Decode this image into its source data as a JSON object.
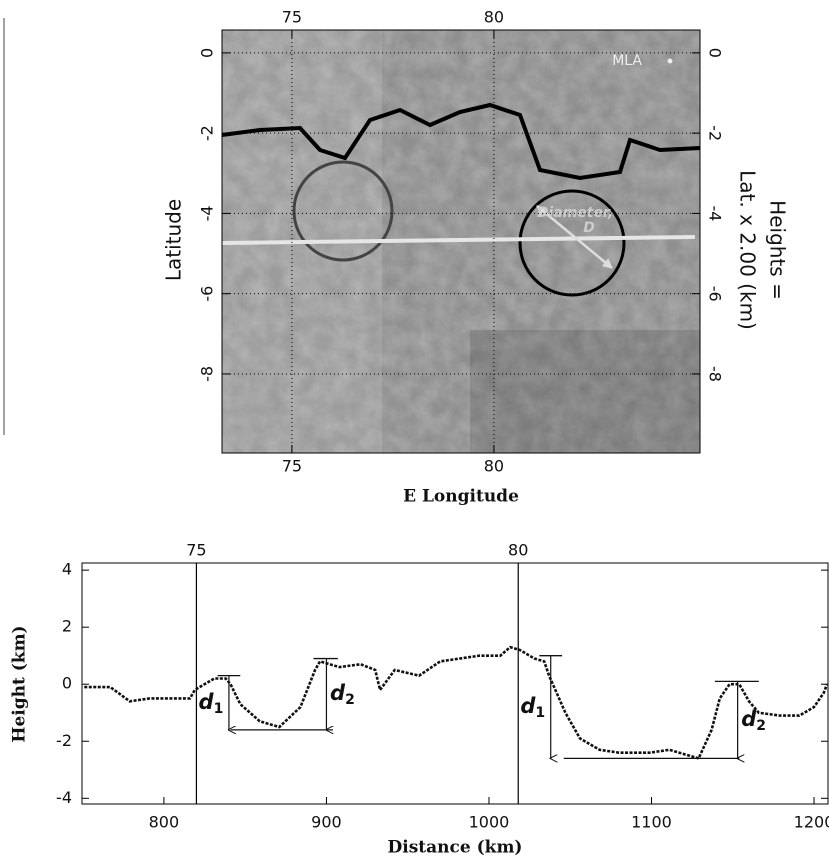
{
  "chart_data": [
    {
      "type": "map",
      "xlabel": "E Longitude",
      "ylabel": "Latitude",
      "y2label": [
        "Heights =",
        "Lat. x 2.00 (km)"
      ],
      "xlim": [
        73.27,
        85.1
      ],
      "ylim": [
        -9.97,
        0.57
      ],
      "xticks": [
        75,
        80
      ],
      "yticks": [
        0,
        -2,
        -4,
        -6,
        -8
      ],
      "y2lim": [
        -9.97,
        0.57
      ],
      "y2ticks": [
        0,
        -2,
        -4,
        -6,
        -8
      ],
      "grid": true,
      "annotations": [
        "MLA",
        "Diameter,",
        "D"
      ]
    },
    {
      "type": "line",
      "xlabel": "Distance (km)",
      "ylabel": "Height (km)",
      "color": "#111111",
      "xlim": [
        749.6,
        1208.6
      ],
      "ylim": [
        -4.2,
        4.25
      ],
      "xticks": [
        800,
        900,
        1000,
        1100,
        1200
      ],
      "yticks": [
        -4,
        -2,
        0,
        2,
        4
      ],
      "x2ticks": [
        {
          "value": 820,
          "label": "75"
        },
        {
          "value": 1018,
          "label": "80"
        }
      ],
      "x": [
        751,
        767,
        779,
        791,
        804,
        816,
        819,
        831,
        838,
        841,
        847,
        859,
        871,
        884,
        893,
        896,
        908,
        921,
        930,
        933,
        942,
        957,
        970,
        982,
        994,
        1007,
        1013,
        1019,
        1028,
        1034,
        1037,
        1047,
        1056,
        1068,
        1080,
        1099,
        1111,
        1123,
        1129,
        1137,
        1142,
        1148,
        1154,
        1160,
        1166,
        1179,
        1191,
        1200,
        1206,
        1208
      ],
      "values": [
        -0.1,
        -0.1,
        -0.6,
        -0.5,
        -0.5,
        -0.5,
        -0.2,
        0.2,
        0.2,
        0,
        -0.7,
        -1.3,
        -1.5,
        -0.8,
        0.5,
        0.8,
        0.6,
        0.7,
        0.5,
        -0.2,
        0.5,
        0.3,
        0.8,
        0.9,
        1.0,
        1.0,
        1.3,
        1.2,
        0.9,
        0.8,
        0.3,
        -1.0,
        -1.9,
        -2.3,
        -2.4,
        -2.4,
        -2.3,
        -2.5,
        -2.6,
        -1.6,
        -0.5,
        0,
        0,
        -0.6,
        -1.0,
        -1.1,
        -1.1,
        -0.8,
        -0.3,
        0
      ],
      "ref_lines": [
        {
          "x": [
            833,
            847
          ],
          "y": 0.3
        },
        {
          "x": [
            841,
            904
          ],
          "y": -1.6
        },
        {
          "x": [
            892,
            907
          ],
          "y": 0.9
        },
        {
          "x": [
            1031,
            1045
          ],
          "y": 1.0
        },
        {
          "x": [
            1046,
            1154
          ],
          "y": -2.6
        },
        {
          "x": [
            1139,
            1166
          ],
          "y": 0.1
        }
      ],
      "arrows": [
        {
          "x": 840,
          "y": [
            0.3,
            -1.6
          ],
          "label": "d",
          "sub": "1"
        },
        {
          "x": 900,
          "y": [
            0.9,
            -1.6
          ],
          "label": "d",
          "sub": "2"
        },
        {
          "x": 1038,
          "y": [
            1.0,
            -2.6
          ],
          "label": "d",
          "sub": "1"
        },
        {
          "x": 1153,
          "y": [
            0.1,
            -2.6
          ],
          "label": "d",
          "sub": "2"
        }
      ]
    }
  ]
}
